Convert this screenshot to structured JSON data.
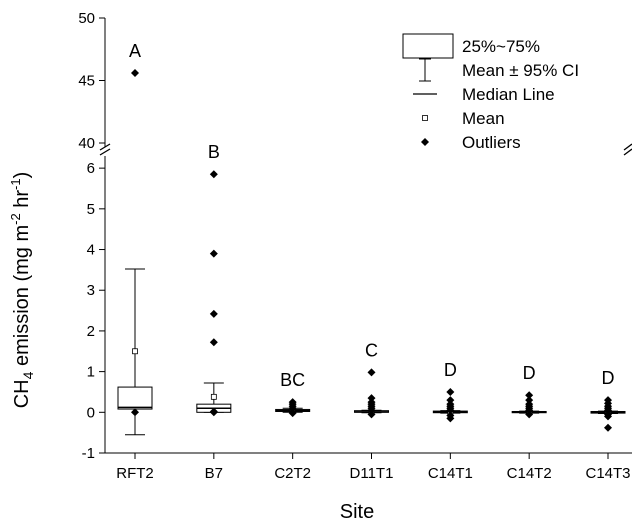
{
  "chart_data": {
    "type": "box",
    "xlabel": "Site",
    "ylabel": {
      "prefix": "CH",
      "sub": "4",
      "main": " emission (mg m",
      "sup1": "-2",
      "mid": " hr",
      "sup2": "-1",
      "end": ")"
    },
    "y_axis": {
      "lower_segment": {
        "range": [
          -1,
          6.2
        ],
        "ticks": [
          -1,
          0,
          1,
          2,
          3,
          4,
          5,
          6
        ]
      },
      "upper_segment": {
        "range": [
          40,
          50
        ],
        "ticks": [
          40,
          45,
          50
        ]
      },
      "break": true
    },
    "categories": [
      "RFT2",
      "B7",
      "C2T2",
      "D11T1",
      "C14T1",
      "C14T2",
      "C14T3"
    ],
    "series": [
      {
        "category": "RFT2",
        "q1": 0.08,
        "median": 0.12,
        "q3": 0.62,
        "mean": 1.5,
        "ci_low": -0.55,
        "ci_high": 3.52,
        "letter": "A",
        "outliers": [
          0.0,
          45.6
        ]
      },
      {
        "category": "B7",
        "q1": 0.0,
        "median": 0.1,
        "q3": 0.2,
        "mean": 0.38,
        "ci_low": 0.0,
        "ci_high": 0.72,
        "letter": "B",
        "outliers": [
          0.0,
          0.02,
          1.72,
          2.42,
          3.9,
          5.85
        ]
      },
      {
        "category": "C2T2",
        "q1": 0.02,
        "median": 0.04,
        "q3": 0.07,
        "mean": 0.05,
        "ci_low": 0.0,
        "ci_high": 0.1,
        "letter": "BC",
        "outliers": [
          -0.02,
          0.0,
          0.1,
          0.15,
          0.2,
          0.25
        ]
      },
      {
        "category": "D11T1",
        "q1": 0.0,
        "median": 0.01,
        "q3": 0.04,
        "mean": 0.02,
        "ci_low": -0.01,
        "ci_high": 0.05,
        "letter": "C",
        "outliers": [
          -0.05,
          0.05,
          0.1,
          0.15,
          0.2,
          0.25,
          0.35,
          0.98
        ]
      },
      {
        "category": "C14T1",
        "q1": -0.01,
        "median": 0.0,
        "q3": 0.03,
        "mean": 0.01,
        "ci_low": -0.02,
        "ci_high": 0.04,
        "letter": "D",
        "outliers": [
          -0.15,
          -0.08,
          0.05,
          0.1,
          0.15,
          0.2,
          0.3,
          0.5
        ]
      },
      {
        "category": "C14T2",
        "q1": -0.01,
        "median": 0.0,
        "q3": 0.02,
        "mean": 0.01,
        "ci_low": -0.02,
        "ci_high": 0.03,
        "letter": "D",
        "outliers": [
          -0.05,
          0.05,
          0.1,
          0.15,
          0.2,
          0.3,
          0.42
        ]
      },
      {
        "category": "C14T3",
        "q1": -0.02,
        "median": 0.0,
        "q3": 0.02,
        "mean": 0.0,
        "ci_low": -0.03,
        "ci_high": 0.03,
        "letter": "D",
        "outliers": [
          -0.38,
          -0.1,
          -0.05,
          0.05,
          0.1,
          0.15,
          0.22,
          0.3
        ]
      }
    ],
    "legend": {
      "placement": "top-right",
      "entries": [
        {
          "symbol": "box",
          "label": "25%~75%"
        },
        {
          "symbol": "ci-bar",
          "label": "Mean ± 95% CI"
        },
        {
          "symbol": "line",
          "label": "Median Line"
        },
        {
          "symbol": "open-square",
          "label": "Mean"
        },
        {
          "symbol": "diamond",
          "label": "Outliers"
        }
      ]
    },
    "grid": false
  }
}
